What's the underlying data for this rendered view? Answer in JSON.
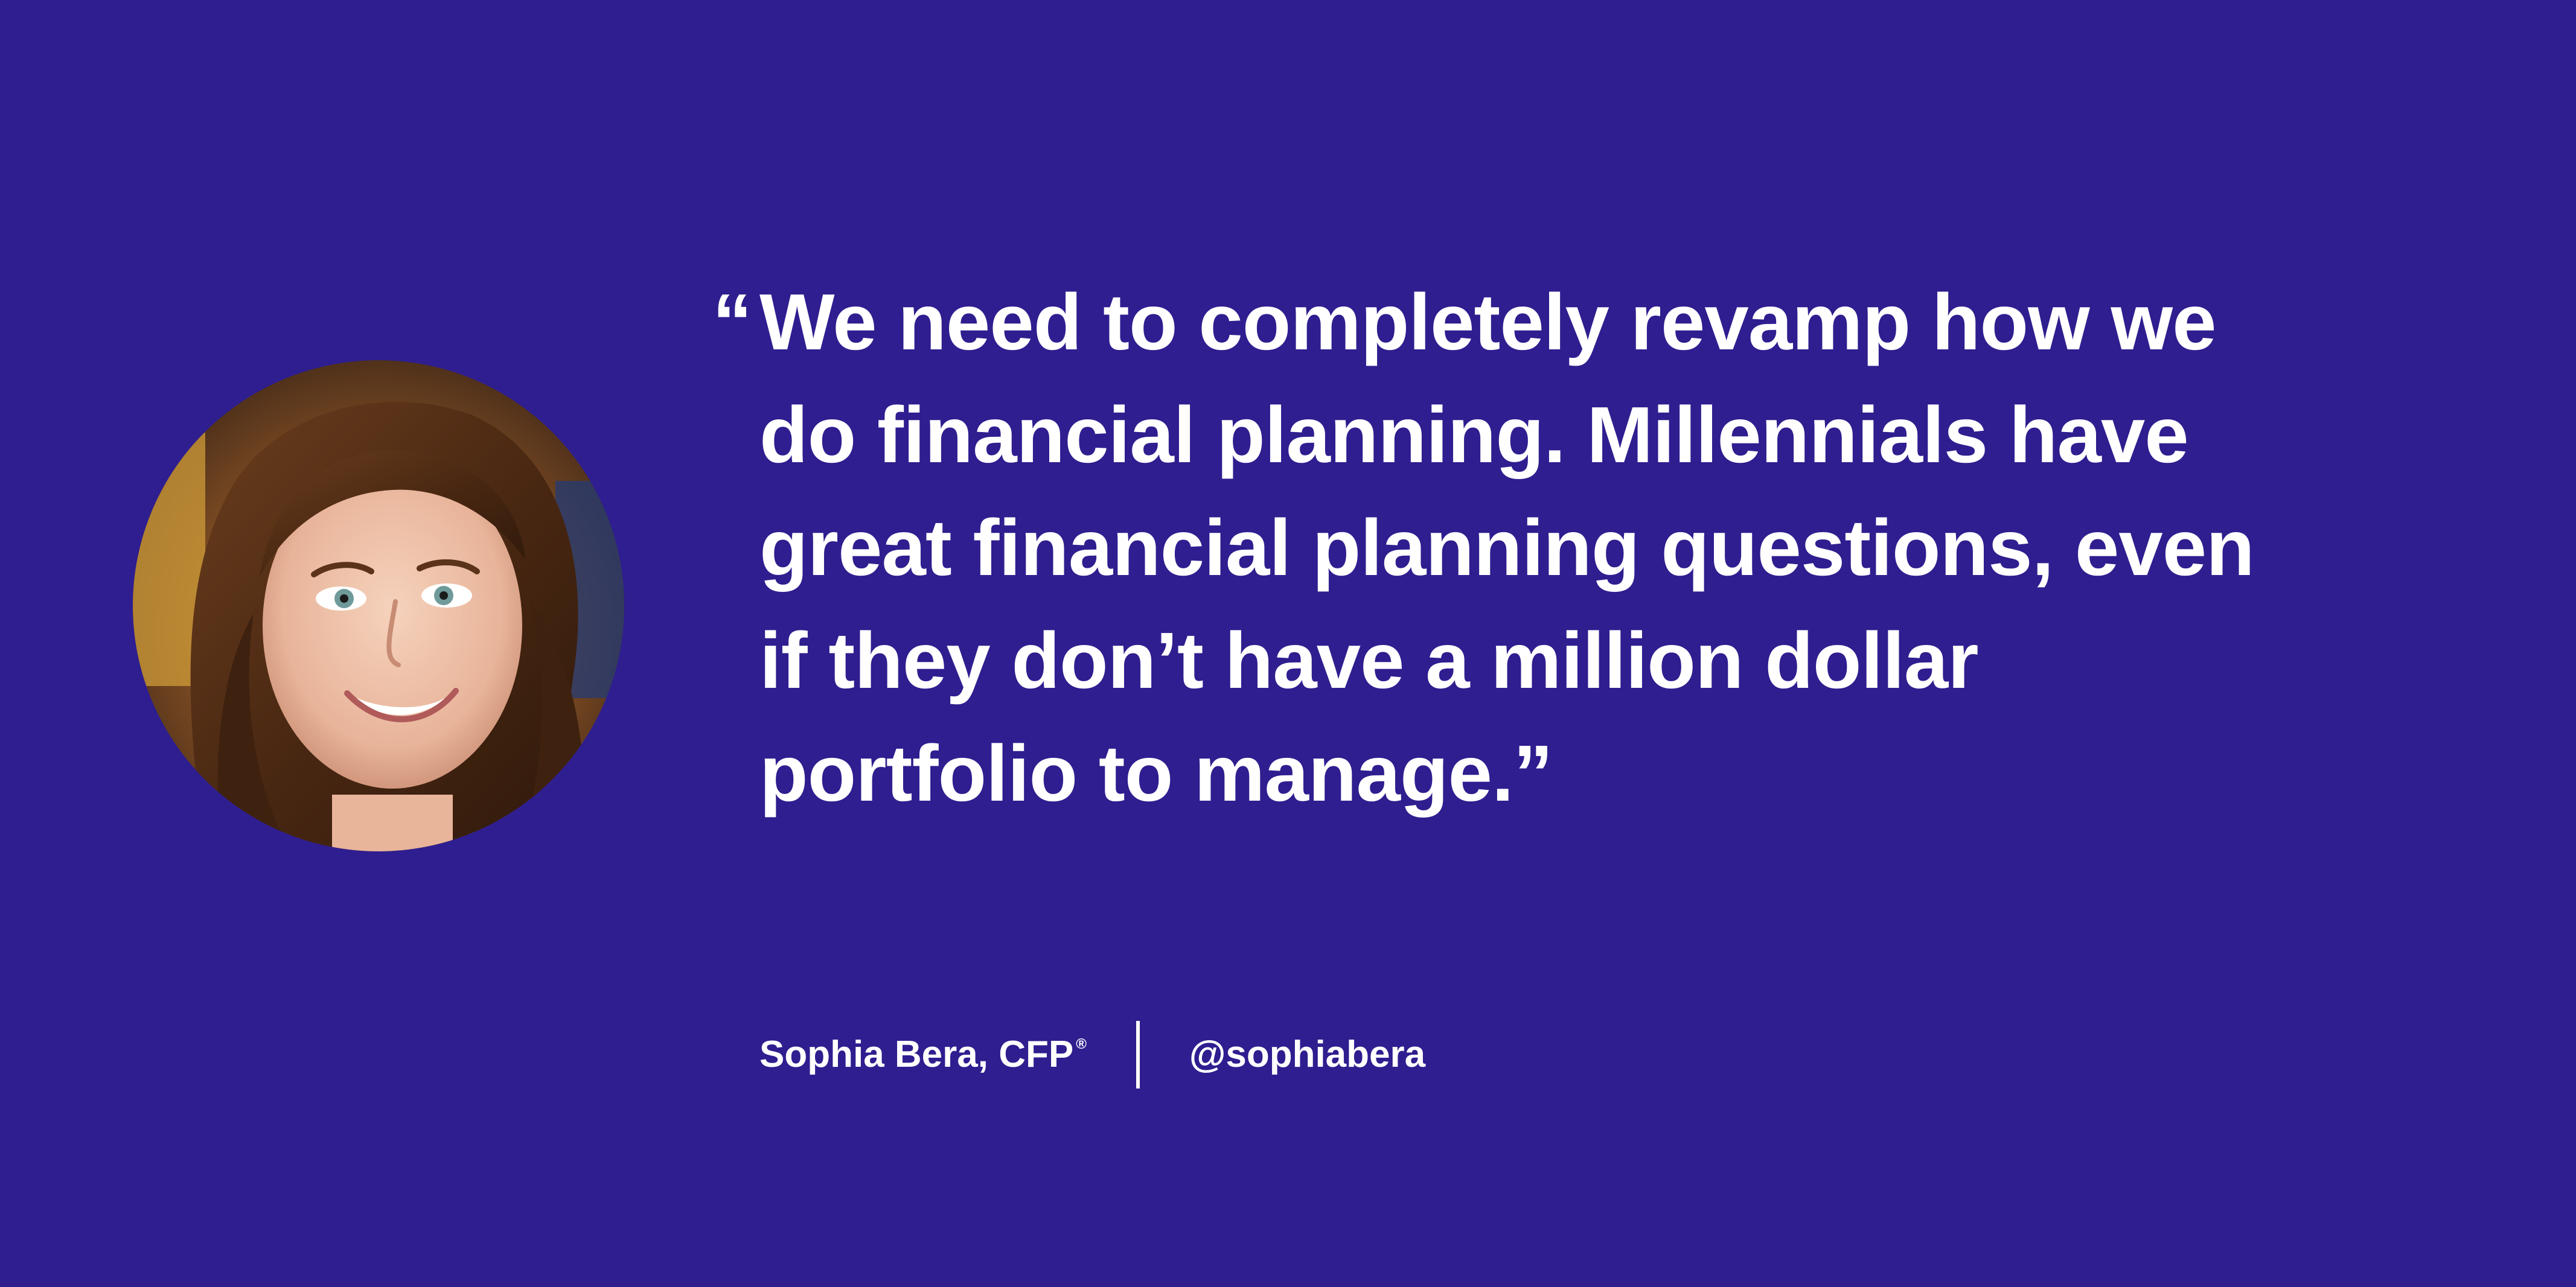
{
  "quote": {
    "open_mark": "“",
    "lines": [
      "We need to completely revamp how we",
      "do financial planning. Millennials have",
      "great financial planning questions, even",
      "if they don’t have a million dollar",
      "portfolio to manage.”"
    ]
  },
  "attribution": {
    "name": "Sophia Bera, CFP",
    "registered_mark": "®",
    "handle": "@sophiabera"
  },
  "photo": {
    "icon": "portrait-photo"
  },
  "colors": {
    "background": "#2e1e8f",
    "text": "#ffffff"
  }
}
